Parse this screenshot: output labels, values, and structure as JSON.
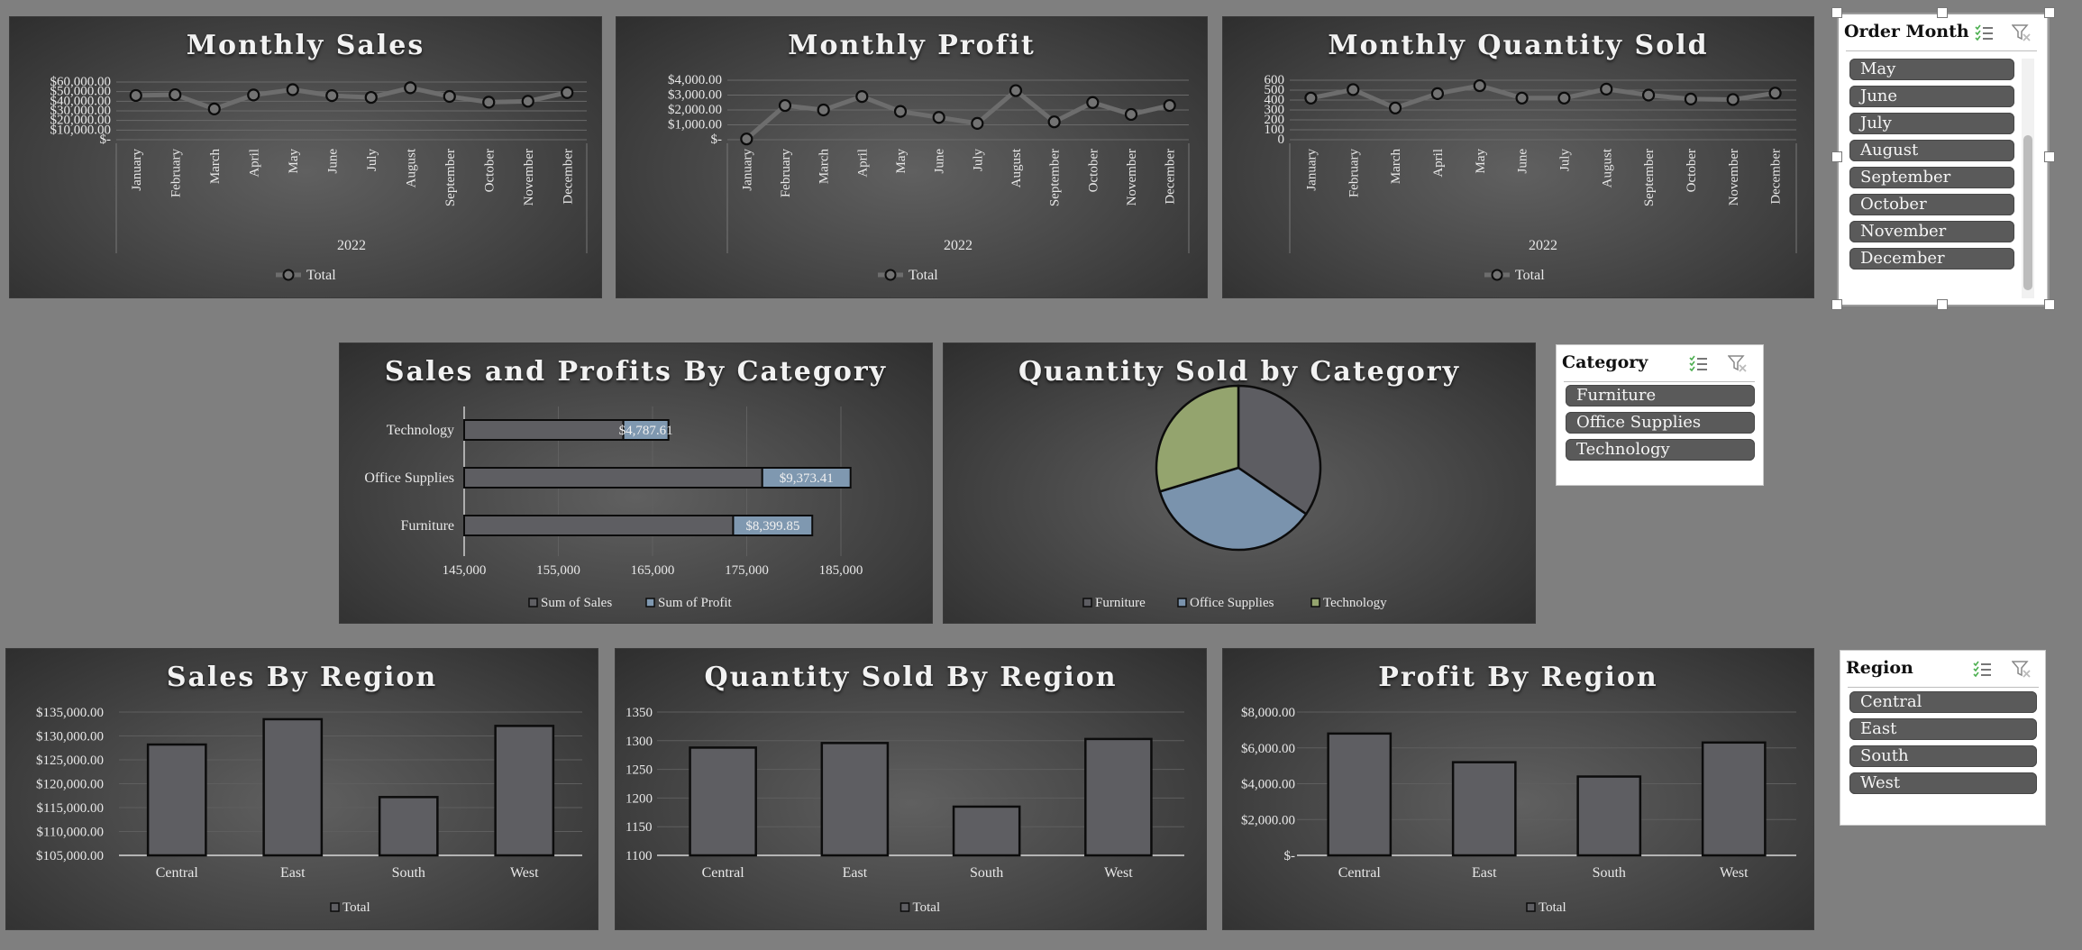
{
  "charts": {
    "monthly_sales": {
      "title": "Monthly Sales",
      "type": "line",
      "ytick_labels": [
        "$60,000.00",
        "$50,000.00",
        "$40,000.00",
        "$30,000.00",
        "$20,000.00",
        "$10,000.00",
        "$-"
      ],
      "categories": [
        "January",
        "February",
        "March",
        "April",
        "May",
        "June",
        "July",
        "August",
        "September",
        "October",
        "November",
        "December"
      ],
      "group_label": "2022",
      "legend": "Total",
      "ylim": [
        0,
        60000
      ],
      "values": [
        46000,
        46800,
        32000,
        46500,
        52000,
        45800,
        44000,
        54000,
        45000,
        39000,
        40000,
        49000
      ]
    },
    "monthly_profit": {
      "title": "Monthly Profit",
      "type": "line",
      "ytick_labels": [
        "$4,000.00",
        "$3,000.00",
        "$2,000.00",
        "$1,000.00",
        "$-"
      ],
      "categories": [
        "January",
        "February",
        "March",
        "April",
        "May",
        "June",
        "July",
        "August",
        "September",
        "October",
        "November",
        "December"
      ],
      "group_label": "2022",
      "legend": "Total",
      "ylim": [
        0,
        4000
      ],
      "values": [
        50,
        2300,
        2000,
        2900,
        1900,
        1500,
        1100,
        3300,
        1200,
        2500,
        1700,
        2300
      ]
    },
    "monthly_quantity": {
      "title": "Monthly Quantity Sold",
      "type": "line",
      "ytick_labels": [
        "600",
        "500",
        "400",
        "300",
        "200",
        "100",
        "0"
      ],
      "categories": [
        "January",
        "February",
        "March",
        "April",
        "May",
        "June",
        "July",
        "August",
        "September",
        "October",
        "November",
        "December"
      ],
      "group_label": "2022",
      "legend": "Total",
      "ylim": [
        0,
        600
      ],
      "values": [
        420,
        505,
        320,
        465,
        545,
        420,
        420,
        510,
        450,
        410,
        405,
        470
      ]
    },
    "sales_profit_category": {
      "title": "Sales and Profits By Category",
      "type": "bar",
      "categories": [
        "Technology",
        "Office Supplies",
        "Furniture"
      ],
      "xtick_labels": [
        "145,000",
        "155,000",
        "165,000",
        "175,000",
        "185,000"
      ],
      "xlim": [
        145000,
        185000
      ],
      "series": [
        {
          "name": "Sum of Sales",
          "color": "#5e5e62",
          "values": [
            161900,
            176650,
            173560
          ]
        },
        {
          "name": "Sum of Profit",
          "color": "#7f98b0",
          "values": [
            4787.61,
            9373.41,
            8399.85
          ]
        }
      ],
      "data_labels": [
        "$4,787.61",
        "$9,373.41",
        "$8,399.85"
      ],
      "legend": [
        "Sum of Sales",
        "Sum of Profit"
      ]
    },
    "quantity_category": {
      "title": "Quantity Sold by Category",
      "type": "pie",
      "categories": [
        "Furniture",
        "Office Supplies",
        "Technology"
      ],
      "values": [
        1780,
        1845,
        1530
      ],
      "colors": [
        "#5d5d62",
        "#7a93ad",
        "#94a46e"
      ],
      "legend": [
        "Furniture",
        "Office Supplies",
        "Technology"
      ]
    },
    "sales_region": {
      "title": "Sales By Region",
      "type": "bar",
      "categories": [
        "Central",
        "East",
        "South",
        "West"
      ],
      "ytick_labels": [
        "$135,000.00",
        "$130,000.00",
        "$125,000.00",
        "$120,000.00",
        "$115,000.00",
        "$110,000.00",
        "$105,000.00"
      ],
      "ylim": [
        105000,
        135000
      ],
      "values": [
        128200,
        133500,
        117200,
        132100
      ],
      "legend": "Total"
    },
    "quantity_region": {
      "title": "Quantity Sold By Region",
      "type": "bar",
      "categories": [
        "Central",
        "East",
        "South",
        "West"
      ],
      "ytick_labels": [
        "1350",
        "1300",
        "1250",
        "1200",
        "1150",
        "1100"
      ],
      "ylim": [
        1100,
        1350
      ],
      "values": [
        1288,
        1296,
        1185,
        1303
      ],
      "legend": "Total"
    },
    "profit_region": {
      "title": "Profit By Region",
      "type": "bar",
      "categories": [
        "Central",
        "East",
        "South",
        "West"
      ],
      "ytick_labels": [
        "$8,000.00",
        "$6,000.00",
        "$4,000.00",
        "$2,000.00",
        "$-"
      ],
      "ylim": [
        0,
        8000
      ],
      "values": [
        6800,
        5200,
        4400,
        6300
      ],
      "legend": "Total"
    }
  },
  "slicers": {
    "order_month": {
      "header": "Order Month",
      "items": [
        "May",
        "June",
        "July",
        "August",
        "September",
        "October",
        "November",
        "December"
      ]
    },
    "category": {
      "header": "Category",
      "items": [
        "Furniture",
        "Office Supplies",
        "Technology"
      ]
    },
    "region": {
      "header": "Region",
      "items": [
        "Central",
        "East",
        "South",
        "West"
      ]
    }
  },
  "colors": {
    "background": "#7f7f7f",
    "bar": "#5e5e62",
    "line": "#707070",
    "slicer_item": "#5a5a5a"
  },
  "icons": [
    "multi-select-icon",
    "clear-filter-icon"
  ]
}
